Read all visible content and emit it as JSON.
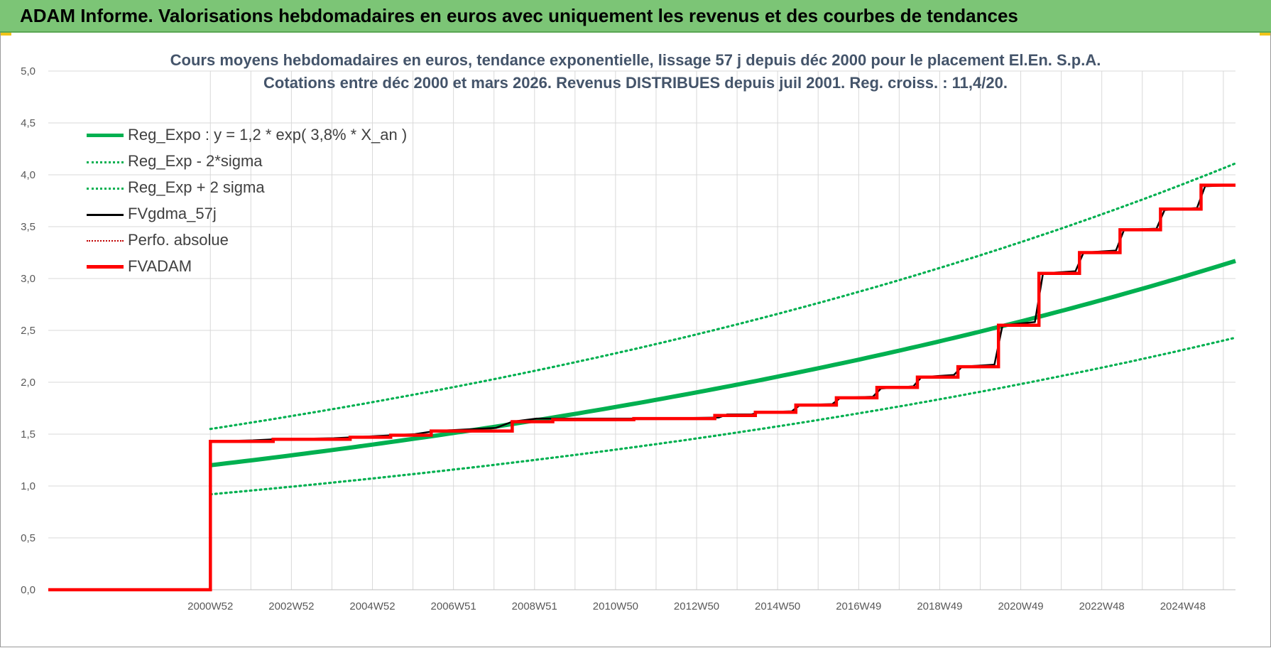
{
  "banner": {
    "title": "ADAM Informe. Valorisations hebdomadaires en euros avec uniquement les revenus et des courbes de tendances"
  },
  "colors": {
    "banner": "#7cc576",
    "title": "#44546a",
    "reg_expo": "#00b050",
    "fvgdma": "#000000",
    "fvadam": "#ff0000",
    "perfo": "#c00000",
    "grid": "#d9d9d9"
  },
  "chart_data": {
    "type": "line",
    "title_line1": "Cours moyens hebdomadaires en euros, tendance exponentielle, lissage 57 j depuis déc 2000 pour le placement El.En. S.p.A.",
    "title_line2": "Cotations entre déc 2000 et mars 2026.  Revenus DISTRIBUES depuis juil 2001.  Reg. croiss. : 11,4/20.",
    "ylim": [
      0,
      5
    ],
    "xlim": [
      1996.95,
      2026.25
    ],
    "y_ticks": [
      "0,0",
      "0,5",
      "1,0",
      "1,5",
      "2,0",
      "2,5",
      "3,0",
      "3,5",
      "4,0",
      "4,5",
      "5,0"
    ],
    "x_ticks": [
      {
        "label": "2000W52",
        "x": 2000.95
      },
      {
        "label": "2002W52",
        "x": 2002.95
      },
      {
        "label": "2004W52",
        "x": 2004.95
      },
      {
        "label": "2006W51",
        "x": 2006.95
      },
      {
        "label": "2008W51",
        "x": 2008.95
      },
      {
        "label": "2010W50",
        "x": 2010.95
      },
      {
        "label": "2012W50",
        "x": 2012.95
      },
      {
        "label": "2014W50",
        "x": 2014.95
      },
      {
        "label": "2016W49",
        "x": 2016.95
      },
      {
        "label": "2018W49",
        "x": 2018.95
      },
      {
        "label": "2020W49",
        "x": 2020.95
      },
      {
        "label": "2022W48",
        "x": 2022.95
      },
      {
        "label": "2024W48",
        "x": 2024.95
      }
    ],
    "grid": true,
    "legend_position": "top-left",
    "series": [
      {
        "name": "Reg_Expo : y = 1,2 * exp( 3,8% *  X_an )",
        "style": "solid-thick",
        "color": "#00b050",
        "points": [
          [
            2000.95,
            1.2
          ],
          [
            2026.25,
            3.17
          ]
        ]
      },
      {
        "name": "Reg_Exp - 2*sigma",
        "style": "dotted",
        "color": "#00b050",
        "points": [
          [
            2000.95,
            0.92
          ],
          [
            2026.25,
            2.43
          ]
        ]
      },
      {
        "name": "Reg_Exp + 2 sigma",
        "style": "dotted",
        "color": "#00b050",
        "points": [
          [
            2000.95,
            1.55
          ],
          [
            2026.25,
            4.11
          ]
        ]
      },
      {
        "name": "FVgdma_57j",
        "style": "solid",
        "color": "#000000",
        "points": [
          [
            1996.95,
            0.0
          ],
          [
            2000.95,
            0.0
          ],
          [
            2000.95,
            1.43
          ],
          [
            2002.0,
            1.44
          ],
          [
            2002.5,
            1.45
          ],
          [
            2004.0,
            1.46
          ],
          [
            2004.5,
            1.47
          ],
          [
            2005.0,
            1.48
          ],
          [
            2006.0,
            1.5
          ],
          [
            2006.5,
            1.53
          ],
          [
            2008.0,
            1.56
          ],
          [
            2008.4,
            1.62
          ],
          [
            2009.0,
            1.65
          ],
          [
            2012.0,
            1.65
          ],
          [
            2013.5,
            1.66
          ],
          [
            2013.7,
            1.69
          ],
          [
            2014.3,
            1.69
          ],
          [
            2014.5,
            1.71
          ],
          [
            2015.3,
            1.72
          ],
          [
            2015.5,
            1.78
          ],
          [
            2016.3,
            1.79
          ],
          [
            2016.5,
            1.85
          ],
          [
            2017.3,
            1.86
          ],
          [
            2017.5,
            1.94
          ],
          [
            2018.3,
            1.96
          ],
          [
            2018.5,
            2.05
          ],
          [
            2019.3,
            2.07
          ],
          [
            2019.5,
            2.15
          ],
          [
            2020.3,
            2.17
          ],
          [
            2020.5,
            2.55
          ],
          [
            2021.3,
            2.58
          ],
          [
            2021.5,
            3.05
          ],
          [
            2022.3,
            3.07
          ],
          [
            2022.5,
            3.25
          ],
          [
            2023.3,
            3.27
          ],
          [
            2023.5,
            3.47
          ],
          [
            2024.3,
            3.48
          ],
          [
            2024.5,
            3.66
          ],
          [
            2025.3,
            3.68
          ],
          [
            2025.5,
            3.89
          ],
          [
            2026.25,
            3.9
          ]
        ]
      },
      {
        "name": "Perfo. absolue",
        "style": "dotted",
        "color": "#c00000",
        "points": []
      },
      {
        "name": "FVADAM",
        "style": "solid-thick",
        "color": "#ff0000",
        "points": [
          [
            1996.95,
            0.0
          ],
          [
            2000.95,
            0.0
          ],
          [
            2000.95,
            1.43
          ],
          [
            2002.5,
            1.43
          ],
          [
            2002.5,
            1.45
          ],
          [
            2004.4,
            1.45
          ],
          [
            2004.4,
            1.47
          ],
          [
            2005.4,
            1.47
          ],
          [
            2005.4,
            1.49
          ],
          [
            2006.4,
            1.49
          ],
          [
            2006.4,
            1.53
          ],
          [
            2008.4,
            1.53
          ],
          [
            2008.4,
            1.62
          ],
          [
            2009.4,
            1.62
          ],
          [
            2009.4,
            1.64
          ],
          [
            2011.4,
            1.64
          ],
          [
            2011.4,
            1.65
          ],
          [
            2013.4,
            1.65
          ],
          [
            2013.4,
            1.68
          ],
          [
            2014.4,
            1.68
          ],
          [
            2014.4,
            1.71
          ],
          [
            2015.4,
            1.71
          ],
          [
            2015.4,
            1.78
          ],
          [
            2016.4,
            1.78
          ],
          [
            2016.4,
            1.85
          ],
          [
            2017.4,
            1.85
          ],
          [
            2017.4,
            1.95
          ],
          [
            2018.4,
            1.95
          ],
          [
            2018.4,
            2.05
          ],
          [
            2019.4,
            2.05
          ],
          [
            2019.4,
            2.15
          ],
          [
            2020.4,
            2.15
          ],
          [
            2020.4,
            2.55
          ],
          [
            2021.4,
            2.55
          ],
          [
            2021.4,
            3.05
          ],
          [
            2022.4,
            3.05
          ],
          [
            2022.4,
            3.25
          ],
          [
            2023.4,
            3.25
          ],
          [
            2023.4,
            3.47
          ],
          [
            2024.4,
            3.47
          ],
          [
            2024.4,
            3.67
          ],
          [
            2025.4,
            3.67
          ],
          [
            2025.4,
            3.9
          ],
          [
            2026.25,
            3.9
          ]
        ]
      }
    ]
  }
}
